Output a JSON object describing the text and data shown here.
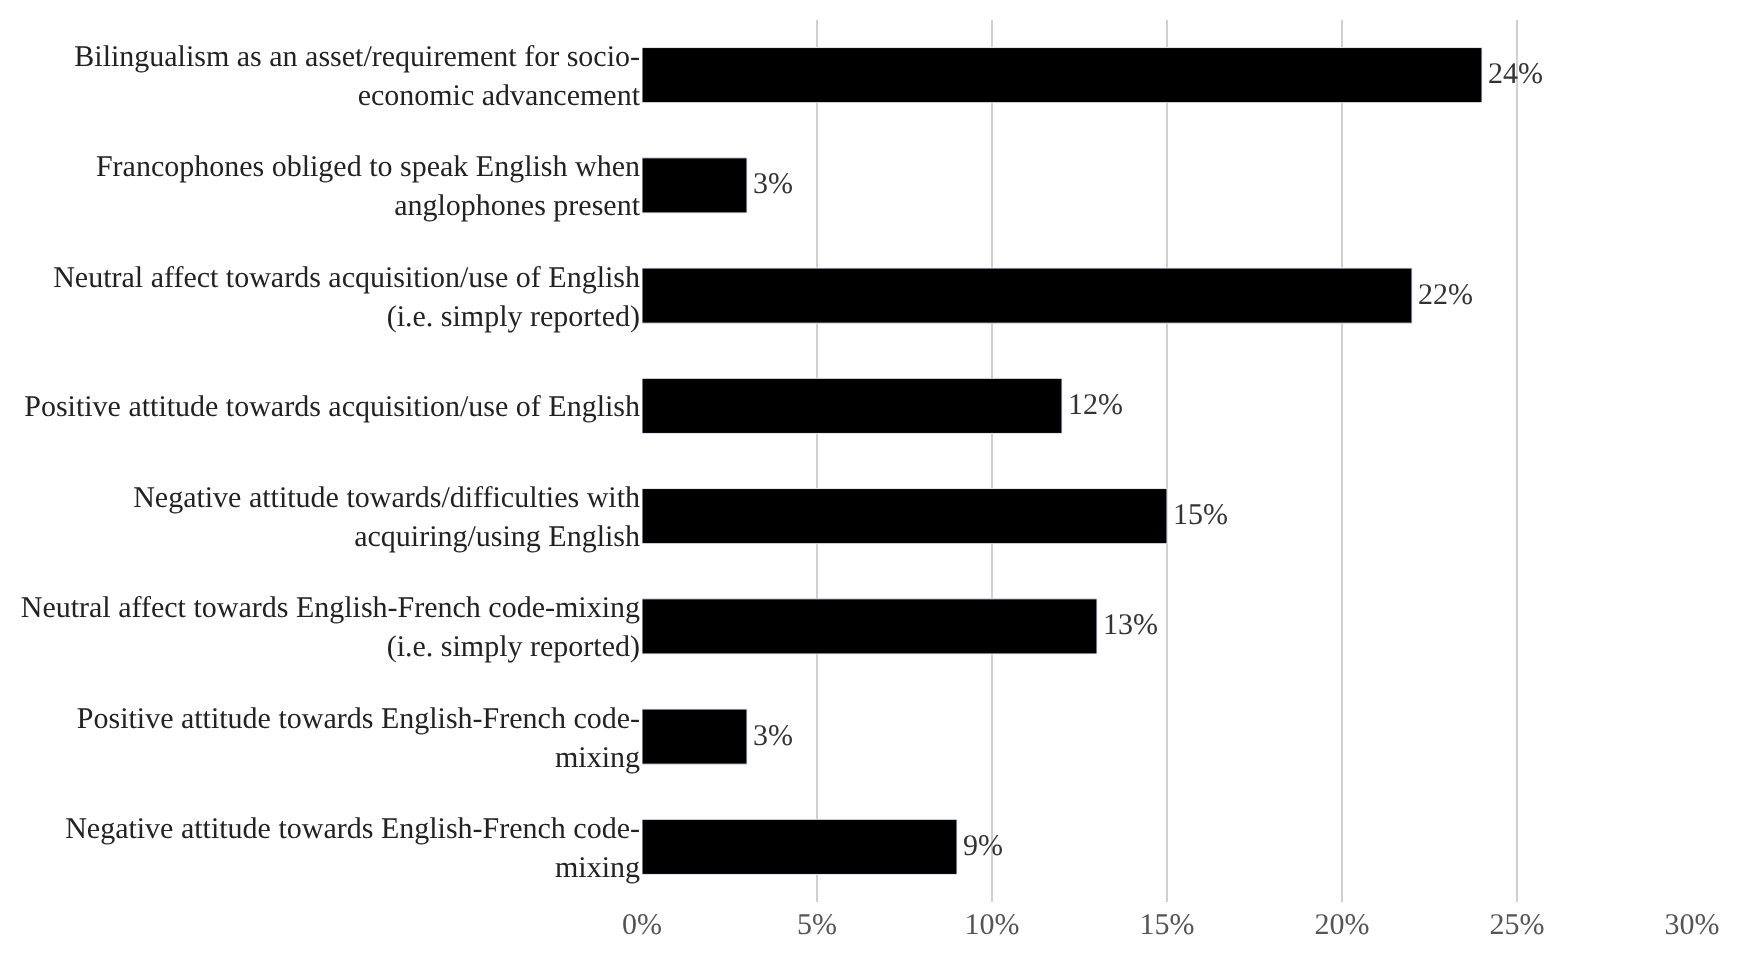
{
  "chart_data": {
    "type": "bar",
    "orientation": "horizontal",
    "categories": [
      "Bilingualism as an asset/requirement for socio-\neconomic advancement",
      "Francophones obliged to speak English when\nanglophones present",
      "Neutral affect towards acquisition/use of English\n(i.e. simply reported)",
      "Positive attitude towards acquisition/use of English",
      "Negative attitude towards/difficulties with\nacquiring/using English",
      "Neutral affect towards English-French code-mixing\n(i.e. simply reported)",
      "Positive attitude towards English-French code-\nmixing",
      "Negative attitude towards English-French code-\nmixing"
    ],
    "values": [
      24,
      3,
      22,
      12,
      15,
      13,
      3,
      9
    ],
    "value_labels": [
      "24%",
      "3%",
      "22%",
      "12%",
      "15%",
      "13%",
      "3%",
      "9%"
    ],
    "color": "#000000",
    "xlim": [
      0,
      30
    ],
    "xticks": [
      {
        "value": 0,
        "label": "0%"
      },
      {
        "value": 5,
        "label": "5%"
      },
      {
        "value": 10,
        "label": "10%"
      },
      {
        "value": 15,
        "label": "15%"
      },
      {
        "value": 20,
        "label": "20%"
      },
      {
        "value": 25,
        "label": "25%"
      },
      {
        "value": 30,
        "label": "30%"
      }
    ],
    "grid": "x",
    "legend": false
  }
}
